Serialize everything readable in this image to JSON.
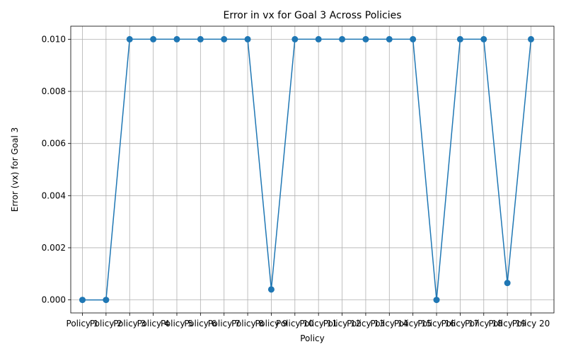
{
  "chart_data": {
    "type": "line",
    "title": "Error in vx for Goal 3 Across Policies",
    "xlabel": "Policy",
    "ylabel": "Error (vx) for Goal 3",
    "categories": [
      "Policy 1",
      "Policy 2",
      "Policy 3",
      "Policy 4",
      "Policy 5",
      "Policy 6",
      "Policy 7",
      "Policy 8",
      "Policy 9",
      "Policy 10",
      "Policy 11",
      "Policy 12",
      "Policy 13",
      "Policy 14",
      "Policy 15",
      "Policy 16",
      "Policy 17",
      "Policy 18",
      "Policy 19",
      "Policy 20"
    ],
    "values": [
      0.0,
      0.0,
      0.01,
      0.01,
      0.01,
      0.01,
      0.01,
      0.01,
      0.0004,
      0.01,
      0.01,
      0.01,
      0.01,
      0.01,
      0.01,
      0.0,
      0.01,
      0.01,
      0.00065,
      0.01
    ],
    "ylim": [
      -0.0005,
      0.0105
    ],
    "yticks": [
      "0.000",
      "0.002",
      "0.004",
      "0.006",
      "0.008",
      "0.010"
    ],
    "ytick_values": [
      0,
      0.002,
      0.004,
      0.006,
      0.008,
      0.01
    ],
    "grid": true,
    "color": "#1f77b4",
    "marker": "circle"
  }
}
